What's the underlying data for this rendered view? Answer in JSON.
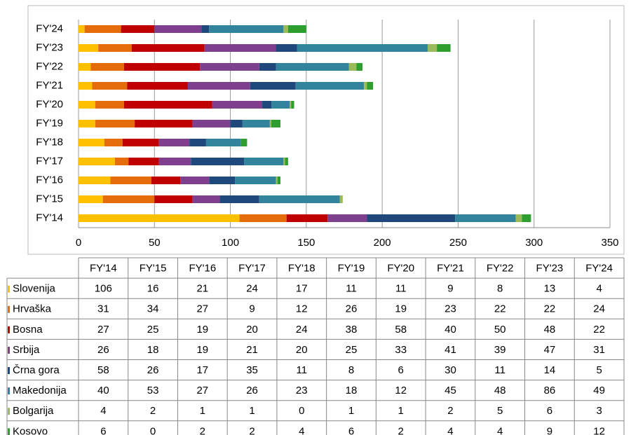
{
  "chart_data": {
    "type": "stacked_bar_horizontal",
    "categories": [
      "FY'14",
      "FY'15",
      "FY'16",
      "FY'17",
      "FY'18",
      "FY'19",
      "FY'20",
      "FY'21",
      "FY'22",
      "FY'23",
      "FY'24"
    ],
    "series": [
      {
        "name": "Slovenija",
        "color": "#FFC000",
        "values": [
          106,
          16,
          21,
          24,
          17,
          11,
          11,
          9,
          8,
          13,
          4
        ]
      },
      {
        "name": "Hrvaška",
        "color": "#E46C0A",
        "values": [
          31,
          34,
          27,
          9,
          12,
          26,
          19,
          23,
          22,
          22,
          24
        ]
      },
      {
        "name": "Bosna",
        "color": "#C00000",
        "values": [
          27,
          25,
          19,
          20,
          24,
          38,
          58,
          40,
          50,
          48,
          22
        ]
      },
      {
        "name": "Srbija",
        "color": "#7F3F8F",
        "values": [
          26,
          18,
          19,
          21,
          20,
          25,
          33,
          41,
          39,
          47,
          31
        ]
      },
      {
        "name": "Črna gora",
        "color": "#1F497D",
        "values": [
          58,
          26,
          17,
          35,
          11,
          8,
          6,
          30,
          11,
          14,
          5
        ]
      },
      {
        "name": "Makedonija",
        "color": "#31849B",
        "values": [
          40,
          53,
          27,
          26,
          23,
          18,
          12,
          45,
          48,
          86,
          49
        ]
      },
      {
        "name": "Bolgarija",
        "color": "#9BBB59",
        "values": [
          4,
          2,
          1,
          1,
          0,
          1,
          1,
          2,
          5,
          6,
          3
        ]
      },
      {
        "name": "Kosovo",
        "color": "#2E9E2E",
        "values": [
          6,
          0,
          2,
          2,
          4,
          6,
          2,
          4,
          4,
          9,
          12
        ]
      }
    ],
    "xlim": [
      0,
      350
    ],
    "xticks": [
      0,
      50,
      100,
      150,
      200,
      250,
      300,
      350
    ],
    "grid": true
  }
}
